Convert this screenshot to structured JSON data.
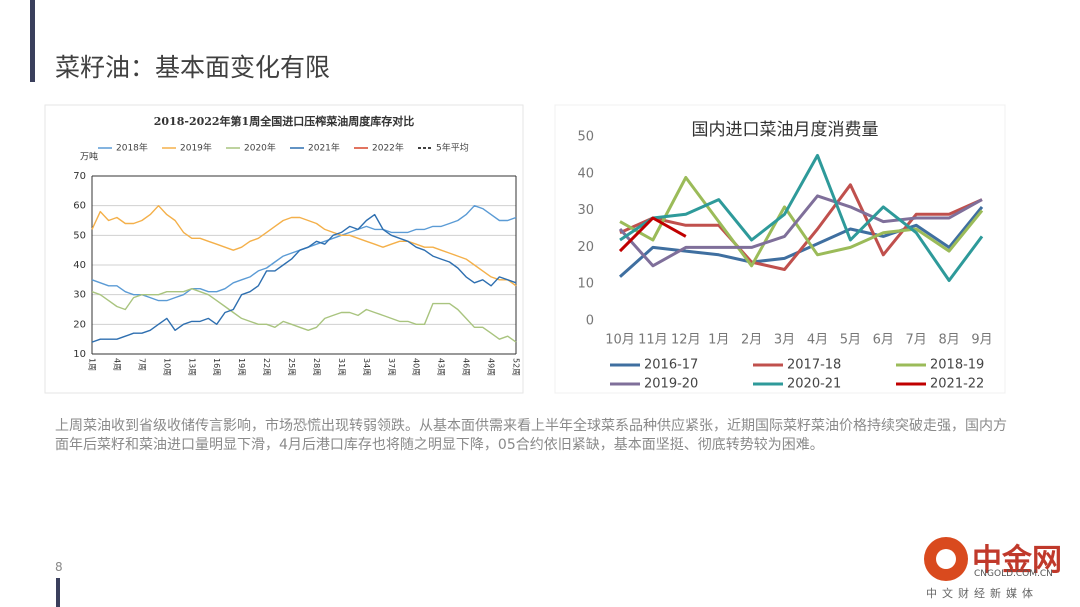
{
  "header": {
    "title": "菜籽油：基本面变化有限"
  },
  "chart_data": [
    {
      "type": "line",
      "title": "2018-2022年第1周全国进口压榨菜油周度库存对比",
      "y_label": "万吨",
      "categories": [
        "1周",
        null,
        null,
        "4周",
        null,
        null,
        "7周",
        null,
        null,
        "10周",
        null,
        null,
        "13周",
        null,
        null,
        "16周",
        null,
        null,
        "19周",
        null,
        null,
        "22周",
        null,
        null,
        "25周",
        null,
        null,
        "28周",
        null,
        null,
        "31周",
        null,
        null,
        "34周",
        null,
        null,
        "37周",
        null,
        null,
        "40周",
        null,
        null,
        "43周",
        null,
        null,
        "46周",
        null,
        null,
        "49周",
        null,
        null,
        "52周"
      ],
      "ylim": [
        10,
        70
      ],
      "yticks": [
        10,
        20,
        30,
        40,
        50,
        60,
        70
      ],
      "grid": true,
      "legend": "top",
      "series": [
        {
          "name": "2018年",
          "color": "#5b9bd5",
          "values": [
            35,
            34,
            33,
            33,
            31,
            30,
            30,
            29,
            28,
            28,
            29,
            30,
            32,
            32,
            31,
            31,
            32,
            34,
            35,
            36,
            38,
            39,
            41,
            43,
            44,
            45,
            46,
            47,
            48,
            49,
            50,
            51,
            52,
            53,
            52,
            52,
            51,
            51,
            51,
            52,
            52,
            53,
            53,
            54,
            55,
            57,
            60,
            59,
            57,
            55,
            55,
            56
          ]
        },
        {
          "name": "2019年",
          "color": "#f4b04a",
          "values": [
            52,
            58,
            55,
            56,
            54,
            54,
            55,
            57,
            60,
            57,
            55,
            51,
            49,
            49,
            48,
            47,
            46,
            45,
            46,
            48,
            49,
            51,
            53,
            55,
            56,
            56,
            55,
            54,
            52,
            51,
            50,
            50,
            49,
            48,
            47,
            46,
            47,
            48,
            48,
            47,
            46,
            46,
            45,
            44,
            43,
            42,
            40,
            38,
            36,
            35,
            35,
            33
          ]
        },
        {
          "name": "2020年",
          "color": "#a9c47f",
          "values": [
            31,
            30,
            28,
            26,
            25,
            29,
            30,
            30,
            30,
            31,
            31,
            31,
            32,
            31,
            30,
            28,
            26,
            24,
            22,
            21,
            20,
            20,
            19,
            21,
            20,
            19,
            18,
            19,
            22,
            23,
            24,
            24,
            23,
            25,
            24,
            23,
            22,
            21,
            21,
            20,
            20,
            27,
            27,
            27,
            25,
            22,
            19,
            19,
            17,
            15,
            16,
            14
          ]
        },
        {
          "name": "2021年",
          "color": "#2e6fb0",
          "values": [
            14,
            15,
            15,
            15,
            16,
            17,
            17,
            18,
            20,
            22,
            18,
            20,
            21,
            21,
            22,
            20,
            24,
            25,
            30,
            31,
            33,
            38,
            38,
            40,
            42,
            45,
            46,
            48,
            47,
            50,
            51,
            53,
            52,
            55,
            57,
            52,
            50,
            49,
            48,
            46,
            45,
            43,
            42,
            41,
            39,
            36,
            34,
            35,
            33,
            36,
            35,
            34
          ]
        },
        {
          "name": "2022年",
          "color": "#d9452b",
          "values": [
            null,
            null,
            null,
            null,
            null,
            null,
            null,
            null,
            null,
            null,
            null,
            null,
            null,
            null,
            null,
            null,
            null,
            null,
            null,
            null,
            null,
            null,
            null,
            null,
            null,
            null,
            null,
            null,
            null,
            null,
            null,
            null,
            null,
            null,
            null,
            null,
            null,
            null,
            null,
            null,
            null,
            null,
            null,
            null,
            null,
            null,
            null,
            null,
            null,
            null,
            null,
            null
          ]
        },
        {
          "name": "5年平均",
          "color": "#000000",
          "dashed": true,
          "values": [
            null,
            null,
            null,
            null,
            null,
            null,
            null,
            null,
            null,
            null,
            null,
            null,
            null,
            null,
            null,
            null,
            null,
            null,
            null,
            null,
            null,
            null,
            null,
            null,
            null,
            null,
            null,
            null,
            null,
            null,
            null,
            null,
            null,
            null,
            null,
            null,
            null,
            null,
            null,
            null,
            null,
            null,
            null,
            null,
            null,
            null,
            null,
            null,
            null,
            null,
            null,
            null
          ]
        }
      ]
    },
    {
      "type": "line",
      "title": "国内进口菜油月度消费量",
      "categories": [
        "10月",
        "11月",
        "12月",
        "1月",
        "2月",
        "3月",
        "4月",
        "5月",
        "6月",
        "7月",
        "8月",
        "9月"
      ],
      "ylim": [
        0,
        50
      ],
      "yticks": [
        0,
        10,
        20,
        30,
        40,
        50
      ],
      "grid": false,
      "legend": "bottom",
      "series": [
        {
          "name": "2016-17",
          "color": "#3f6fa0",
          "values": [
            12,
            20,
            19,
            18,
            16,
            17,
            21,
            25,
            23,
            26,
            20,
            31
          ]
        },
        {
          "name": "2017-18",
          "color": "#c0504d",
          "values": [
            24,
            28,
            26,
            26,
            16,
            14,
            25,
            37,
            18,
            29,
            29,
            33
          ]
        },
        {
          "name": "2018-19",
          "color": "#9bbb59",
          "values": [
            27,
            22,
            39,
            27,
            15,
            31,
            18,
            20,
            24,
            25,
            19,
            30
          ]
        },
        {
          "name": "2019-20",
          "color": "#7f6f9a",
          "values": [
            25,
            15,
            20,
            20,
            20,
            23,
            34,
            31,
            27,
            28,
            28,
            33
          ]
        },
        {
          "name": "2020-21",
          "color": "#2e9a9a",
          "values": [
            22,
            28,
            29,
            33,
            22,
            29,
            45,
            22,
            31,
            24,
            11,
            23
          ]
        },
        {
          "name": "2021-22",
          "color": "#c00000",
          "values": [
            19,
            28,
            23,
            null,
            null,
            null,
            null,
            null,
            null,
            null,
            null,
            null
          ]
        }
      ]
    }
  ],
  "body": {
    "text": "上周菜油收到省级收储传言影响，市场恐慌出现转弱领跌。从基本面供需来看上半年全球菜系品种供应紧张，近期国际菜籽菜油价格持续突破走强，国内方面年后菜籽和菜油进口量明显下滑，4月后港口库存也将随之明显下降，05合约依旧紧缺，基本面坚挺、彻底转势较为困难。"
  },
  "footer": {
    "page": "8"
  },
  "watermark": {
    "name": "中金网",
    "url": "CNGOLD.COM.CN",
    "slogan": "中文财经新媒体"
  }
}
